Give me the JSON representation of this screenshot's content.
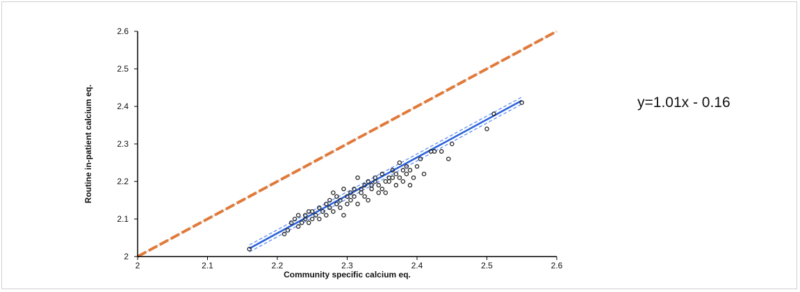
{
  "chart_data": {
    "type": "scatter",
    "title": "",
    "xlabel": "Community specific calcium eq.",
    "ylabel": "Routine in-patient calcium  eq.",
    "xlim": [
      2,
      2.6
    ],
    "ylim": [
      2,
      2.6
    ],
    "xticks": [
      "2",
      "2.1",
      "2.2",
      "2.3",
      "2.4",
      "2.5",
      "2.6"
    ],
    "yticks": [
      "2",
      "2.1",
      "2.2",
      "2.3",
      "2.4",
      "2.5",
      "2.6"
    ],
    "grid": false,
    "annotation": "y=1.01x - 0.16",
    "regression": {
      "slope": 1.01,
      "intercept": -0.16,
      "x_range": [
        2.16,
        2.55
      ]
    },
    "identity_line": {
      "from": [
        2,
        2
      ],
      "to": [
        2.6,
        2.6
      ]
    },
    "colors": {
      "points": "#222222",
      "regression": "#2b63d9",
      "confidence": "#5f8df0",
      "identity": "#e07a3a",
      "identity_dash": "#c9c9c9"
    },
    "points": [
      [
        2.16,
        2.02
      ],
      [
        2.21,
        2.06
      ],
      [
        2.215,
        2.07
      ],
      [
        2.22,
        2.09
      ],
      [
        2.225,
        2.1
      ],
      [
        2.23,
        2.11
      ],
      [
        2.23,
        2.08
      ],
      [
        2.235,
        2.09
      ],
      [
        2.24,
        2.1
      ],
      [
        2.24,
        2.11
      ],
      [
        2.245,
        2.09
      ],
      [
        2.245,
        2.12
      ],
      [
        2.25,
        2.1
      ],
      [
        2.25,
        2.12
      ],
      [
        2.255,
        2.11
      ],
      [
        2.26,
        2.13
      ],
      [
        2.26,
        2.1
      ],
      [
        2.265,
        2.12
      ],
      [
        2.27,
        2.14
      ],
      [
        2.27,
        2.11
      ],
      [
        2.275,
        2.15
      ],
      [
        2.275,
        2.13
      ],
      [
        2.28,
        2.12
      ],
      [
        2.28,
        2.17
      ],
      [
        2.285,
        2.14
      ],
      [
        2.285,
        2.16
      ],
      [
        2.29,
        2.15
      ],
      [
        2.29,
        2.13
      ],
      [
        2.295,
        2.11
      ],
      [
        2.295,
        2.18
      ],
      [
        2.3,
        2.16
      ],
      [
        2.3,
        2.14
      ],
      [
        2.305,
        2.17
      ],
      [
        2.305,
        2.15
      ],
      [
        2.31,
        2.18
      ],
      [
        2.31,
        2.16
      ],
      [
        2.315,
        2.21
      ],
      [
        2.315,
        2.14
      ],
      [
        2.32,
        2.17
      ],
      [
        2.32,
        2.18
      ],
      [
        2.325,
        2.19
      ],
      [
        2.325,
        2.16
      ],
      [
        2.33,
        2.2
      ],
      [
        2.33,
        2.15
      ],
      [
        2.335,
        2.18
      ],
      [
        2.335,
        2.19
      ],
      [
        2.34,
        2.21
      ],
      [
        2.34,
        2.2
      ],
      [
        2.345,
        2.17
      ],
      [
        2.345,
        2.19
      ],
      [
        2.35,
        2.22
      ],
      [
        2.35,
        2.18
      ],
      [
        2.355,
        2.2
      ],
      [
        2.355,
        2.17
      ],
      [
        2.36,
        2.21
      ],
      [
        2.36,
        2.2
      ],
      [
        2.365,
        2.23
      ],
      [
        2.365,
        2.21
      ],
      [
        2.37,
        2.22
      ],
      [
        2.37,
        2.19
      ],
      [
        2.375,
        2.25
      ],
      [
        2.375,
        2.21
      ],
      [
        2.38,
        2.23
      ],
      [
        2.38,
        2.2
      ],
      [
        2.385,
        2.22
      ],
      [
        2.385,
        2.24
      ],
      [
        2.39,
        2.19
      ],
      [
        2.39,
        2.23
      ],
      [
        2.395,
        2.21
      ],
      [
        2.4,
        2.24
      ],
      [
        2.405,
        2.26
      ],
      [
        2.41,
        2.22
      ],
      [
        2.42,
        2.28
      ],
      [
        2.425,
        2.28
      ],
      [
        2.435,
        2.28
      ],
      [
        2.445,
        2.26
      ],
      [
        2.45,
        2.3
      ],
      [
        2.5,
        2.34
      ],
      [
        2.51,
        2.38
      ],
      [
        2.55,
        2.41
      ]
    ]
  }
}
